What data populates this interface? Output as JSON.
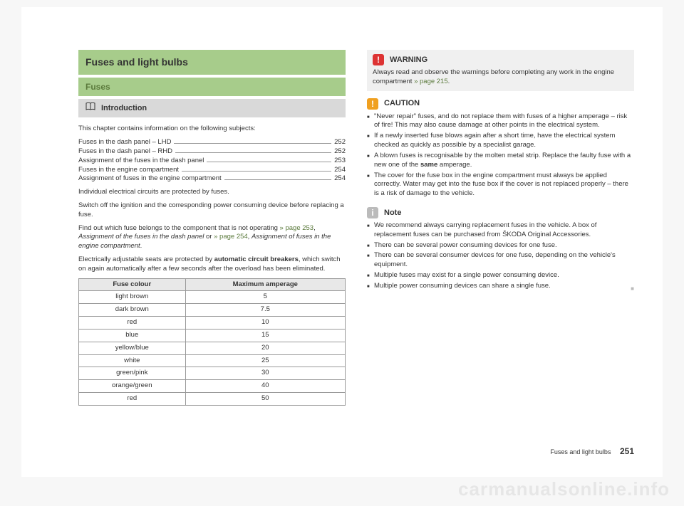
{
  "headers": {
    "main": "Fuses and light bulbs",
    "sub": "Fuses",
    "intro": "Introduction"
  },
  "intro_text": "This chapter contains information on the following subjects:",
  "toc": [
    {
      "label": "Fuses in the dash panel – LHD",
      "page": "252"
    },
    {
      "label": "Fuses in the dash panel – RHD",
      "page": "252"
    },
    {
      "label": "Assignment of the fuses in the dash panel",
      "page": "253"
    },
    {
      "label": "Fuses in the engine compartment",
      "page": "254"
    },
    {
      "label": "Assignment of fuses in the engine compartment",
      "page": "254"
    }
  ],
  "paragraphs": {
    "p1": "Individual electrical circuits are protected by fuses.",
    "p2": "Switch off the ignition and the corresponding power consuming device before replacing a fuse.",
    "p3a": "Find out which fuse belongs to the component that is not operating ",
    "p3link1": "» page 253",
    "p3b": ", ",
    "p3italic1": "Assignment of the fuses in the dash panel",
    "p3c": " or ",
    "p3link2": "» page 254",
    "p3d": ", ",
    "p3italic2": "Assignment of fuses in the engine compartment",
    "p3e": ".",
    "p4a": "Electrically adjustable seats are protected by ",
    "p4b": "automatic circuit breakers",
    "p4c": ", which switch on again automatically after a few seconds after the overload has been eliminated."
  },
  "table": {
    "columns": [
      "Fuse colour",
      "Maximum amperage"
    ],
    "rows": [
      [
        "light brown",
        "5"
      ],
      [
        "dark brown",
        "7.5"
      ],
      [
        "red",
        "10"
      ],
      [
        "blue",
        "15"
      ],
      [
        "yellow/blue",
        "20"
      ],
      [
        "white",
        "25"
      ],
      [
        "green/pink",
        "30"
      ],
      [
        "orange/green",
        "40"
      ],
      [
        "red",
        "50"
      ]
    ]
  },
  "warning": {
    "title": "WARNING",
    "text_a": "Always read and observe the warnings before completing any work in the engine compartment ",
    "link": "» page 215",
    "text_b": "."
  },
  "caution": {
    "title": "CAUTION",
    "items": [
      "\"Never repair\" fuses, and do not replace them with fuses of a higher amperage – risk of fire! This may also cause damage at other points in the electrical system.",
      "If a newly inserted fuse blows again after a short time, have the electrical system checked as quickly as possible by a specialist garage.",
      "A blown fuses is recognisable by the molten metal strip. Replace the faulty fuse with a new one of the <b>same</b> amperage.",
      "The cover for the fuse box in the engine compartment must always be applied correctly. Water may get into the fuse box if the cover is not replaced properly – there is a risk of damage to the vehicle."
    ]
  },
  "note": {
    "title": "Note",
    "items": [
      "We recommend always carrying replacement fuses in the vehicle. A box of replacement fuses can be purchased from ŠKODA Original Accessories.",
      "There can be several power consuming devices for one fuse.",
      "There can be several consumer devices for one fuse, depending on the vehicle's equipment.",
      "Multiple fuses may exist for a single power consuming device.",
      "Multiple power consuming devices can share a single fuse."
    ]
  },
  "footer": {
    "label": "Fuses and light bulbs",
    "page": "251"
  },
  "watermark": "carmanualsonline.info"
}
